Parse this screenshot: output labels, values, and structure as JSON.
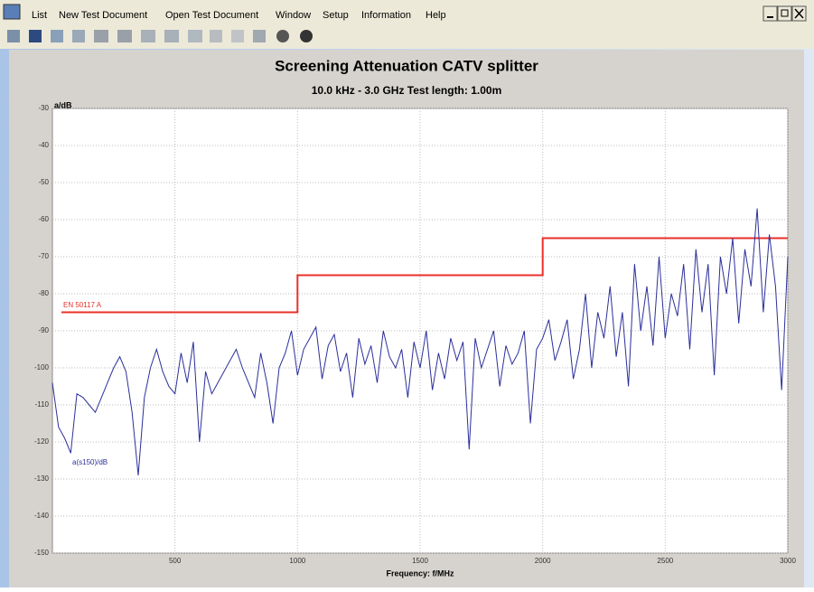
{
  "menu": {
    "items": [
      "List",
      "New Test Document",
      "Open Test Document",
      "Window",
      "Setup",
      "Information",
      "Help"
    ]
  },
  "chart_data": {
    "type": "line",
    "title": "Screening Attenuation    CATV splitter",
    "subtitle": "10.0 kHz - 3.0 GHz   Test length: 1.00m",
    "ylabel": "a/dB",
    "xlabel": "Frequency: f/MHz",
    "xlim": [
      0,
      3000
    ],
    "ylim": [
      -150,
      -30
    ],
    "xticks": [
      500,
      1000,
      1500,
      2000,
      2500,
      3000
    ],
    "yticks": [
      -150,
      -140,
      -130,
      -120,
      -110,
      -100,
      -90,
      -80,
      -70,
      -60,
      -50,
      -40,
      -30
    ],
    "grid": true,
    "series": [
      {
        "name": "EN 50117 A",
        "color": "#e8302a",
        "x": [
          37,
          1000,
          1000,
          2000,
          2000,
          3000
        ],
        "values": [
          -85,
          -85,
          -75,
          -75,
          -65,
          -65
        ]
      },
      {
        "name": "a(s150)/dB",
        "color": "#2b2f9a",
        "x": [
          0,
          25,
          50,
          75,
          100,
          125,
          150,
          175,
          200,
          225,
          250,
          275,
          300,
          325,
          350,
          375,
          400,
          425,
          450,
          475,
          500,
          525,
          550,
          575,
          600,
          625,
          650,
          675,
          700,
          725,
          750,
          775,
          800,
          825,
          850,
          875,
          900,
          925,
          950,
          975,
          1000,
          1025,
          1050,
          1075,
          1100,
          1125,
          1150,
          1175,
          1200,
          1225,
          1250,
          1275,
          1300,
          1325,
          1350,
          1375,
          1400,
          1425,
          1450,
          1475,
          1500,
          1525,
          1550,
          1575,
          1600,
          1625,
          1650,
          1675,
          1700,
          1725,
          1750,
          1775,
          1800,
          1825,
          1850,
          1875,
          1900,
          1925,
          1950,
          1975,
          2000,
          2025,
          2050,
          2075,
          2100,
          2125,
          2150,
          2175,
          2200,
          2225,
          2250,
          2275,
          2300,
          2325,
          2350,
          2375,
          2400,
          2425,
          2450,
          2475,
          2500,
          2525,
          2550,
          2575,
          2600,
          2625,
          2650,
          2675,
          2700,
          2725,
          2750,
          2775,
          2800,
          2825,
          2850,
          2875,
          2900,
          2925,
          2950,
          2975,
          3000
        ],
        "values": [
          -104,
          -116,
          -119,
          -123,
          -107,
          -108,
          -110,
          -112,
          -108,
          -104,
          -100,
          -97,
          -101,
          -112,
          -129,
          -108,
          -100,
          -95,
          -101,
          -105,
          -107,
          -96,
          -104,
          -93,
          -120,
          -101,
          -107,
          -104,
          -101,
          -98,
          -95,
          -100,
          -104,
          -108,
          -96,
          -104,
          -115,
          -100,
          -96,
          -90,
          -102,
          -95,
          -92,
          -89,
          -103,
          -94,
          -91,
          -101,
          -96,
          -108,
          -92,
          -99,
          -94,
          -104,
          -90,
          -97,
          -100,
          -95,
          -108,
          -93,
          -100,
          -90,
          -106,
          -96,
          -103,
          -92,
          -98,
          -93,
          -122,
          -92,
          -100,
          -95,
          -90,
          -105,
          -94,
          -99,
          -96,
          -90,
          -115,
          -95,
          -92,
          -87,
          -98,
          -93,
          -87,
          -103,
          -95,
          -80,
          -100,
          -85,
          -92,
          -78,
          -97,
          -85,
          -105,
          -72,
          -90,
          -78,
          -94,
          -70,
          -92,
          -80,
          -86,
          -72,
          -95,
          -68,
          -85,
          -72,
          -102,
          -70,
          -80,
          -65,
          -88,
          -68,
          -78,
          -57,
          -85,
          -64,
          -78,
          -106,
          -70
        ]
      }
    ]
  }
}
